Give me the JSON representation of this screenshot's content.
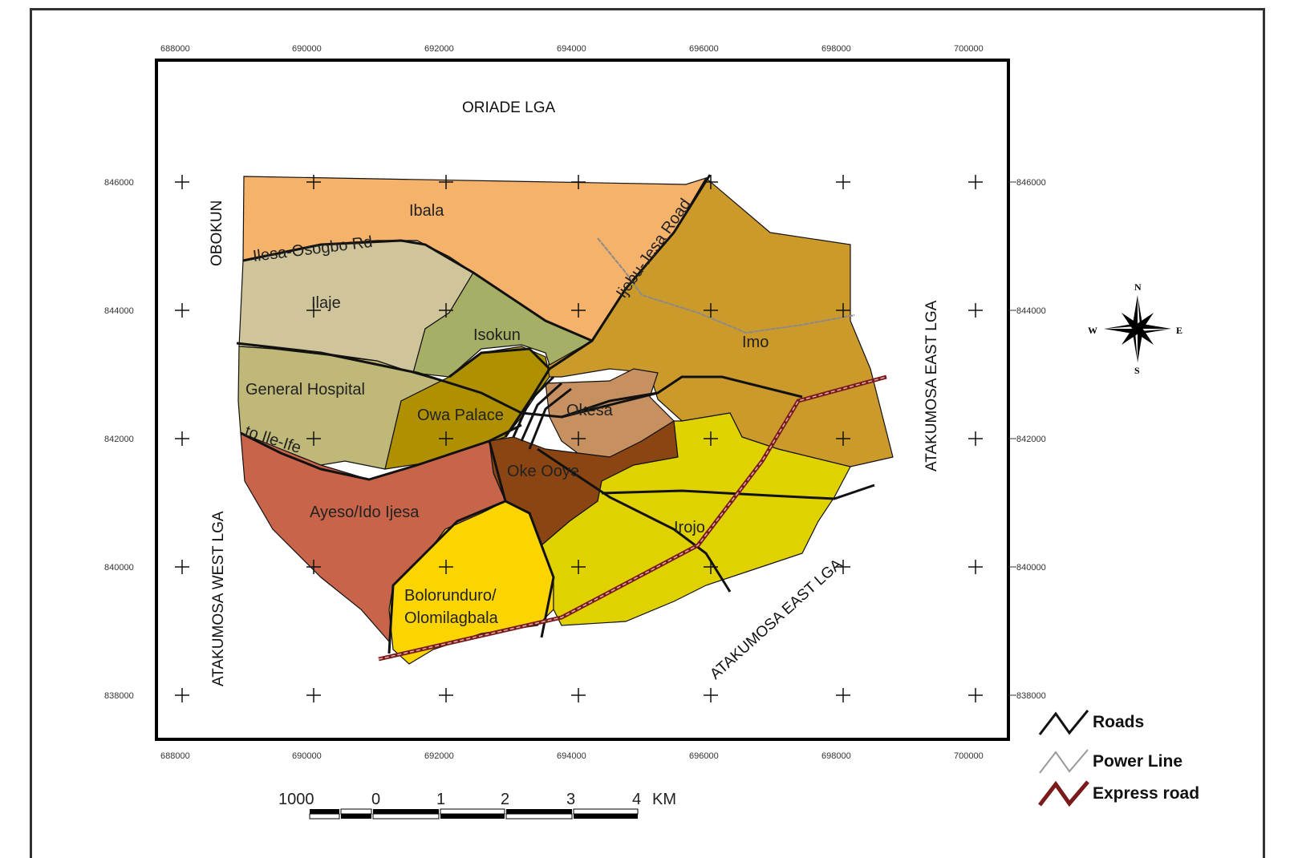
{
  "map": {
    "x_ticks": [
      "688000",
      "690000",
      "692000",
      "694000",
      "696000",
      "698000",
      "700000"
    ],
    "y_ticks": [
      "846000",
      "844000",
      "842000",
      "840000",
      "838000"
    ],
    "neighbours": {
      "north": "ORIADE LGA",
      "west_top": "OBOKUN",
      "west": "ATAKUMOSA WEST LGA",
      "east": "ATAKUMOSA EAST LGA",
      "southeast": "ATAKUMOSA EAST LGA"
    },
    "regions": [
      {
        "name": "Ibala",
        "color": "#F5B26B"
      },
      {
        "name": "Imo",
        "color": "#CC9A2A"
      },
      {
        "name": "Ilaje",
        "color": "#CFC49A"
      },
      {
        "name": "Isokun",
        "color": "#A7AE65"
      },
      {
        "name": "General Hospital",
        "color": "#BFB878"
      },
      {
        "name": "Owa Palace",
        "color": "#AE9000"
      },
      {
        "name": "Okesa",
        "color": "#C69060"
      },
      {
        "name": "Oke Ooye",
        "color": "#8B4513"
      },
      {
        "name": "Ayeso/Ido Ijesa",
        "color": "#C8644A"
      },
      {
        "name": "Bolorunduro/",
        "name2": "Olomilagbala",
        "color": "#FCD400"
      },
      {
        "name": "Irojo",
        "color": "#DFD200"
      }
    ],
    "road_labels": {
      "ilesa_osogbo": "Ilesa-Osogbo Rd",
      "ijebu_jesa": "Ijebu-Jesa Road",
      "ile_ife": "to Ile-Ife"
    },
    "compass": {
      "n": "N",
      "s": "S",
      "e": "E",
      "w": "W"
    },
    "legend": [
      {
        "label": "Roads",
        "color": "#111111"
      },
      {
        "label": "Power Line",
        "color": "#999999"
      },
      {
        "label": "Express road",
        "color": "#7A1A1A"
      }
    ],
    "scale": {
      "labels": [
        "1000",
        "0",
        "1",
        "2",
        "3",
        "4"
      ],
      "unit": "KM"
    }
  }
}
